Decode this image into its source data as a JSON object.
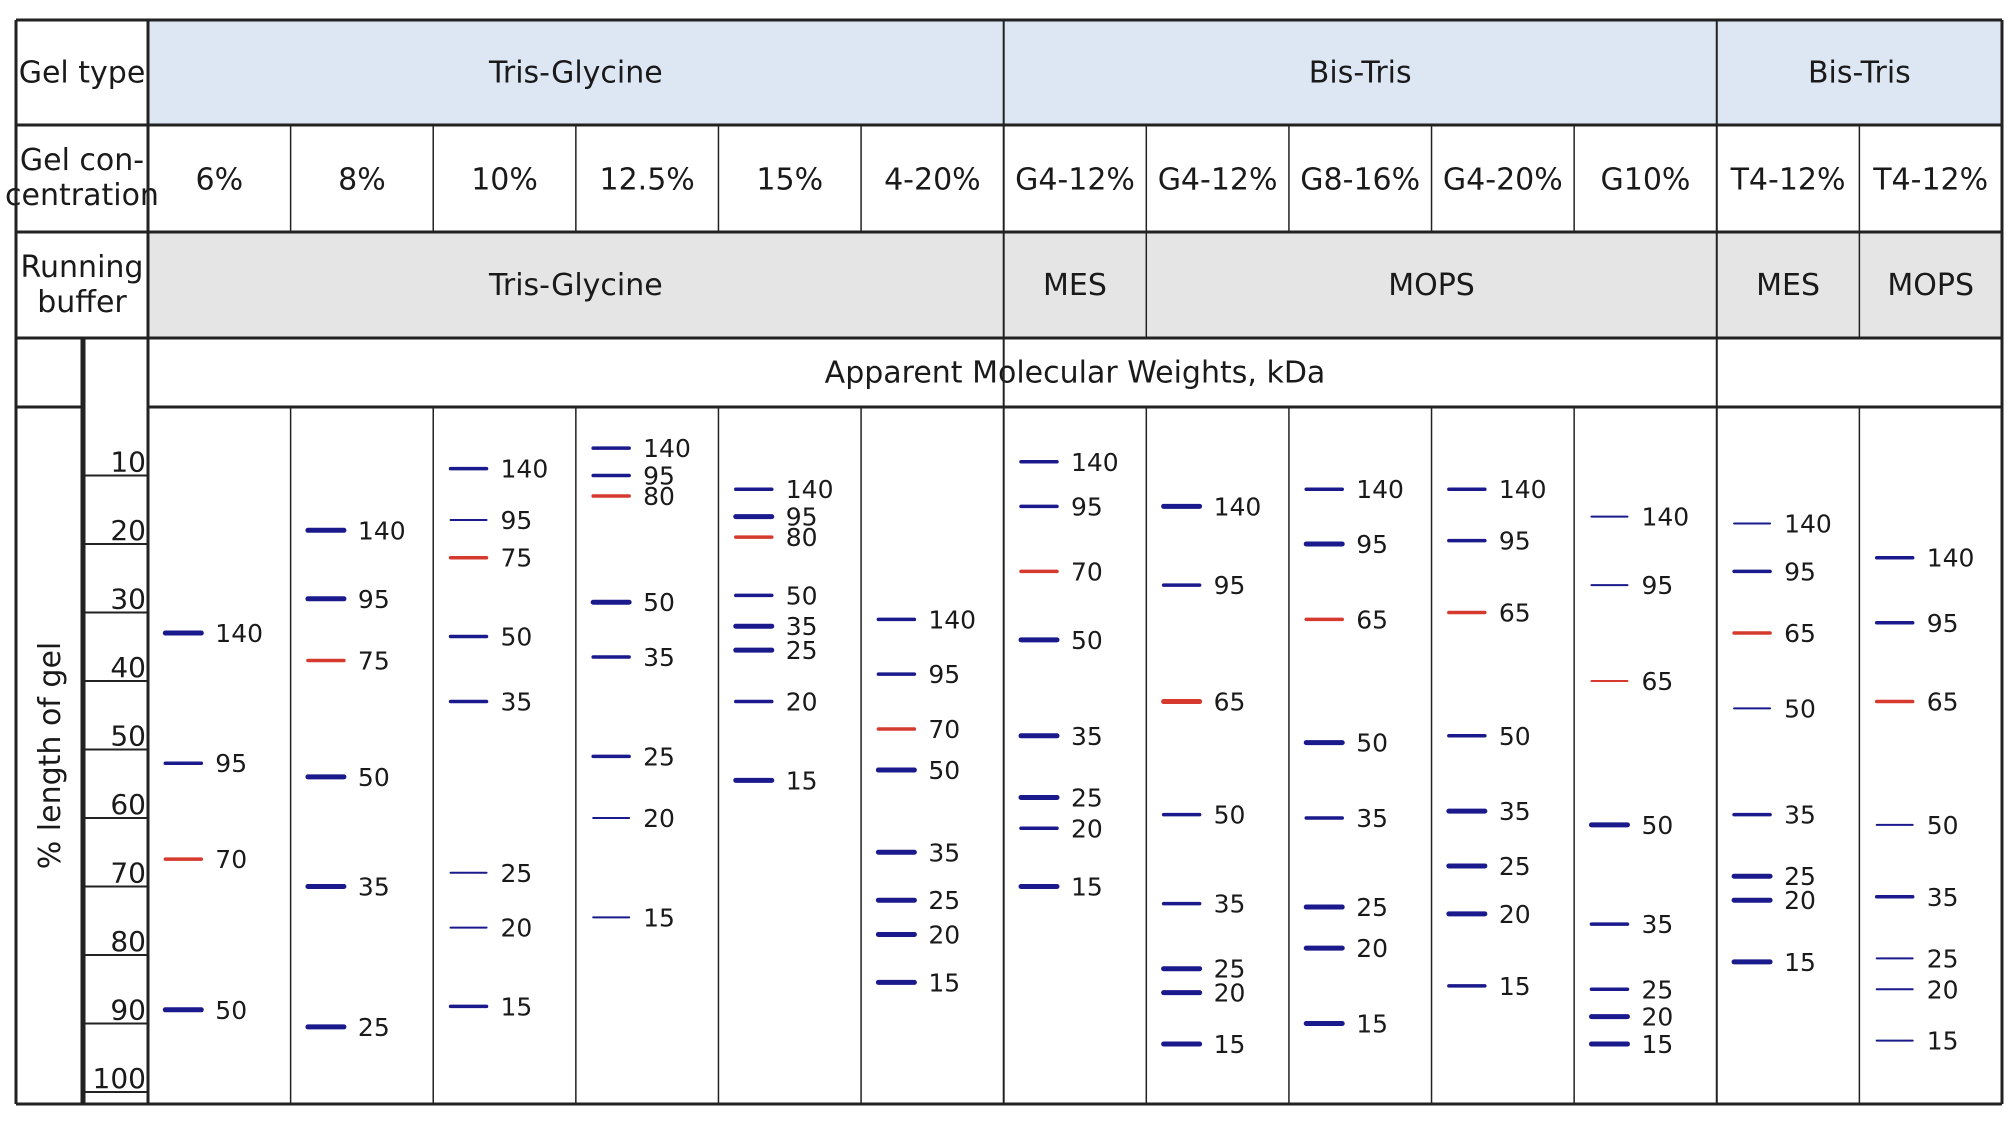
{
  "table": {
    "row_labels": {
      "gel_type": "Gel type",
      "gel_concentration": [
        "Gel con-",
        "centration"
      ],
      "running_buffer": [
        "Running",
        "buffer"
      ]
    },
    "gel_type_groups": [
      "Tris-Glycine",
      "Bis-Tris",
      "Bis-Tris"
    ],
    "buffer_groups": [
      "Tris-Glycine",
      "MES",
      "MOPS",
      "MES",
      "MOPS"
    ],
    "mw_header": "Apparent Molecular Weights, kDa",
    "y_axis_label": "% length of gel",
    "colors": {
      "header_blue": "#dde6f3",
      "header_gray": "#e5e5e5",
      "band_blue": "#1a1a8c",
      "band_red": "#d63a2f",
      "grid": "#222222"
    }
  },
  "chart_data": {
    "type": "table",
    "title": "Apparent Molecular Weights, kDa",
    "ylabel": "% length of gel",
    "ylim": [
      0,
      100
    ],
    "yticks": [
      10,
      20,
      30,
      40,
      50,
      60,
      70,
      80,
      90,
      100
    ],
    "lanes": [
      {
        "concentration": "6%",
        "gel_type": "Tris-Glycine",
        "buffer": "Tris-Glycine",
        "bands": [
          {
            "label": "140",
            "pos": 33,
            "color": "blue",
            "weight": "bold"
          },
          {
            "label": "95",
            "pos": 52,
            "color": "blue",
            "weight": "normal"
          },
          {
            "label": "70",
            "pos": 66,
            "color": "red",
            "weight": "normal"
          },
          {
            "label": "50",
            "pos": 88,
            "color": "blue",
            "weight": "bold"
          }
        ]
      },
      {
        "concentration": "8%",
        "gel_type": "Tris-Glycine",
        "buffer": "Tris-Glycine",
        "bands": [
          {
            "label": "140",
            "pos": 18,
            "color": "blue",
            "weight": "bold"
          },
          {
            "label": "95",
            "pos": 28,
            "color": "blue",
            "weight": "bold"
          },
          {
            "label": "75",
            "pos": 37,
            "color": "red",
            "weight": "normal"
          },
          {
            "label": "50",
            "pos": 54,
            "color": "blue",
            "weight": "bold"
          },
          {
            "label": "35",
            "pos": 70,
            "color": "blue",
            "weight": "bold"
          },
          {
            "label": "25",
            "pos": 90.5,
            "color": "blue",
            "weight": "bold"
          }
        ]
      },
      {
        "concentration": "10%",
        "gel_type": "Tris-Glycine",
        "buffer": "Tris-Glycine",
        "bands": [
          {
            "label": "140",
            "pos": 9,
            "color": "blue",
            "weight": "normal"
          },
          {
            "label": "95",
            "pos": 16.5,
            "color": "blue",
            "weight": "thin"
          },
          {
            "label": "75",
            "pos": 22,
            "color": "red",
            "weight": "normal"
          },
          {
            "label": "50",
            "pos": 33.5,
            "color": "blue",
            "weight": "normal"
          },
          {
            "label": "35",
            "pos": 43,
            "color": "blue",
            "weight": "normal"
          },
          {
            "label": "25",
            "pos": 68,
            "color": "blue",
            "weight": "thin"
          },
          {
            "label": "20",
            "pos": 76,
            "color": "blue",
            "weight": "thin"
          },
          {
            "label": "15",
            "pos": 87.5,
            "color": "blue",
            "weight": "normal"
          }
        ]
      },
      {
        "concentration": "12.5%",
        "gel_type": "Tris-Glycine",
        "buffer": "Tris-Glycine",
        "bands": [
          {
            "label": "140",
            "pos": 6,
            "color": "blue",
            "weight": "normal"
          },
          {
            "label": "95",
            "pos": 10,
            "color": "blue",
            "weight": "normal"
          },
          {
            "label": "80",
            "pos": 13,
            "color": "red",
            "weight": "normal"
          },
          {
            "label": "50",
            "pos": 28.5,
            "color": "blue",
            "weight": "bold"
          },
          {
            "label": "35",
            "pos": 36.5,
            "color": "blue",
            "weight": "normal"
          },
          {
            "label": "25",
            "pos": 51,
            "color": "blue",
            "weight": "normal"
          },
          {
            "label": "20",
            "pos": 60,
            "color": "blue",
            "weight": "thin"
          },
          {
            "label": "15",
            "pos": 74.5,
            "color": "blue",
            "weight": "thin"
          }
        ]
      },
      {
        "concentration": "15%",
        "gel_type": "Tris-Glycine",
        "buffer": "Tris-Glycine",
        "bands": [
          {
            "label": "140",
            "pos": 12,
            "color": "blue",
            "weight": "normal"
          },
          {
            "label": "95",
            "pos": 16,
            "color": "blue",
            "weight": "bold"
          },
          {
            "label": "80",
            "pos": 19,
            "color": "red",
            "weight": "normal"
          },
          {
            "label": "50",
            "pos": 27.5,
            "color": "blue",
            "weight": "normal"
          },
          {
            "label": "35",
            "pos": 32,
            "color": "blue",
            "weight": "bold"
          },
          {
            "label": "25",
            "pos": 35.5,
            "color": "blue",
            "weight": "bold"
          },
          {
            "label": "20",
            "pos": 43,
            "color": "blue",
            "weight": "normal"
          },
          {
            "label": "15",
            "pos": 54.5,
            "color": "blue",
            "weight": "bold"
          }
        ]
      },
      {
        "concentration": "4-20%",
        "gel_type": "Tris-Glycine",
        "buffer": "Tris-Glycine",
        "bands": [
          {
            "label": "140",
            "pos": 31,
            "color": "blue",
            "weight": "normal"
          },
          {
            "label": "95",
            "pos": 39,
            "color": "blue",
            "weight": "normal"
          },
          {
            "label": "70",
            "pos": 47,
            "color": "red",
            "weight": "normal"
          },
          {
            "label": "50",
            "pos": 53,
            "color": "blue",
            "weight": "bold"
          },
          {
            "label": "35",
            "pos": 65,
            "color": "blue",
            "weight": "bold"
          },
          {
            "label": "25",
            "pos": 72,
            "color": "blue",
            "weight": "bold"
          },
          {
            "label": "20",
            "pos": 77,
            "color": "blue",
            "weight": "bold"
          },
          {
            "label": "15",
            "pos": 84,
            "color": "blue",
            "weight": "bold"
          }
        ]
      },
      {
        "concentration": "G4-12%",
        "gel_type": "Bis-Tris",
        "buffer": "MES",
        "bands": [
          {
            "label": "140",
            "pos": 8,
            "color": "blue",
            "weight": "normal"
          },
          {
            "label": "95",
            "pos": 14.5,
            "color": "blue",
            "weight": "normal"
          },
          {
            "label": "70",
            "pos": 24,
            "color": "red",
            "weight": "normal"
          },
          {
            "label": "50",
            "pos": 34,
            "color": "blue",
            "weight": "bold"
          },
          {
            "label": "35",
            "pos": 48,
            "color": "blue",
            "weight": "bold"
          },
          {
            "label": "25",
            "pos": 57,
            "color": "blue",
            "weight": "bold"
          },
          {
            "label": "20",
            "pos": 61.5,
            "color": "blue",
            "weight": "normal"
          },
          {
            "label": "15",
            "pos": 70,
            "color": "blue",
            "weight": "bold"
          }
        ]
      },
      {
        "concentration": "G4-12%",
        "gel_type": "Bis-Tris",
        "buffer": "MOPS",
        "bands": [
          {
            "label": "140",
            "pos": 14.5,
            "color": "blue",
            "weight": "bold"
          },
          {
            "label": "95",
            "pos": 26,
            "color": "blue",
            "weight": "normal"
          },
          {
            "label": "65",
            "pos": 43,
            "color": "red",
            "weight": "bold"
          },
          {
            "label": "50",
            "pos": 59.5,
            "color": "blue",
            "weight": "normal"
          },
          {
            "label": "35",
            "pos": 72.5,
            "color": "blue",
            "weight": "normal"
          },
          {
            "label": "25",
            "pos": 82,
            "color": "blue",
            "weight": "bold"
          },
          {
            "label": "20",
            "pos": 85.5,
            "color": "blue",
            "weight": "bold"
          },
          {
            "label": "15",
            "pos": 93,
            "color": "blue",
            "weight": "bold"
          }
        ]
      },
      {
        "concentration": "G8-16%",
        "gel_type": "Bis-Tris",
        "buffer": "MOPS",
        "bands": [
          {
            "label": "140",
            "pos": 12,
            "color": "blue",
            "weight": "normal"
          },
          {
            "label": "95",
            "pos": 20,
            "color": "blue",
            "weight": "bold"
          },
          {
            "label": "65",
            "pos": 31,
            "color": "red",
            "weight": "normal"
          },
          {
            "label": "50",
            "pos": 49,
            "color": "blue",
            "weight": "bold"
          },
          {
            "label": "35",
            "pos": 60,
            "color": "blue",
            "weight": "normal"
          },
          {
            "label": "25",
            "pos": 73,
            "color": "blue",
            "weight": "bold"
          },
          {
            "label": "20",
            "pos": 79,
            "color": "blue",
            "weight": "bold"
          },
          {
            "label": "15",
            "pos": 90,
            "color": "blue",
            "weight": "bold"
          }
        ]
      },
      {
        "concentration": "G4-20%",
        "gel_type": "Bis-Tris",
        "buffer": "MOPS",
        "bands": [
          {
            "label": "140",
            "pos": 12,
            "color": "blue",
            "weight": "normal"
          },
          {
            "label": "95",
            "pos": 19.5,
            "color": "blue",
            "weight": "normal"
          },
          {
            "label": "65",
            "pos": 30,
            "color": "red",
            "weight": "normal"
          },
          {
            "label": "50",
            "pos": 48,
            "color": "blue",
            "weight": "normal"
          },
          {
            "label": "35",
            "pos": 59,
            "color": "blue",
            "weight": "bold"
          },
          {
            "label": "25",
            "pos": 67,
            "color": "blue",
            "weight": "bold"
          },
          {
            "label": "20",
            "pos": 74,
            "color": "blue",
            "weight": "bold"
          },
          {
            "label": "15",
            "pos": 84.5,
            "color": "blue",
            "weight": "normal"
          }
        ]
      },
      {
        "concentration": "G10%",
        "gel_type": "Bis-Tris",
        "buffer": "MOPS",
        "bands": [
          {
            "label": "140",
            "pos": 16,
            "color": "blue",
            "weight": "thin"
          },
          {
            "label": "95",
            "pos": 26,
            "color": "blue",
            "weight": "thin"
          },
          {
            "label": "65",
            "pos": 40,
            "color": "red",
            "weight": "thin"
          },
          {
            "label": "50",
            "pos": 61,
            "color": "blue",
            "weight": "bold"
          },
          {
            "label": "35",
            "pos": 75.5,
            "color": "blue",
            "weight": "normal"
          },
          {
            "label": "25",
            "pos": 85,
            "color": "blue",
            "weight": "normal"
          },
          {
            "label": "20",
            "pos": 89,
            "color": "blue",
            "weight": "bold"
          },
          {
            "label": "15",
            "pos": 93,
            "color": "blue",
            "weight": "bold"
          }
        ]
      },
      {
        "concentration": "T4-12%",
        "gel_type": "Bis-Tris",
        "buffer": "MES",
        "bands": [
          {
            "label": "140",
            "pos": 17,
            "color": "blue",
            "weight": "thin"
          },
          {
            "label": "95",
            "pos": 24,
            "color": "blue",
            "weight": "normal"
          },
          {
            "label": "65",
            "pos": 33,
            "color": "red",
            "weight": "normal"
          },
          {
            "label": "50",
            "pos": 44,
            "color": "blue",
            "weight": "thin"
          },
          {
            "label": "35",
            "pos": 59.5,
            "color": "blue",
            "weight": "normal"
          },
          {
            "label": "25",
            "pos": 68.5,
            "color": "blue",
            "weight": "bold"
          },
          {
            "label": "20",
            "pos": 72,
            "color": "blue",
            "weight": "bold"
          },
          {
            "label": "15",
            "pos": 81,
            "color": "blue",
            "weight": "bold"
          }
        ]
      },
      {
        "concentration": "T4-12%",
        "gel_type": "Bis-Tris",
        "buffer": "MOPS",
        "bands": [
          {
            "label": "140",
            "pos": 22,
            "color": "blue",
            "weight": "normal"
          },
          {
            "label": "95",
            "pos": 31.5,
            "color": "blue",
            "weight": "normal"
          },
          {
            "label": "65",
            "pos": 43,
            "color": "red",
            "weight": "normal"
          },
          {
            "label": "50",
            "pos": 61,
            "color": "blue",
            "weight": "thin"
          },
          {
            "label": "35",
            "pos": 71.5,
            "color": "blue",
            "weight": "normal"
          },
          {
            "label": "25",
            "pos": 80.5,
            "color": "blue",
            "weight": "thin"
          },
          {
            "label": "20",
            "pos": 85,
            "color": "blue",
            "weight": "thin"
          },
          {
            "label": "15",
            "pos": 92.5,
            "color": "blue",
            "weight": "thin"
          }
        ]
      }
    ]
  }
}
